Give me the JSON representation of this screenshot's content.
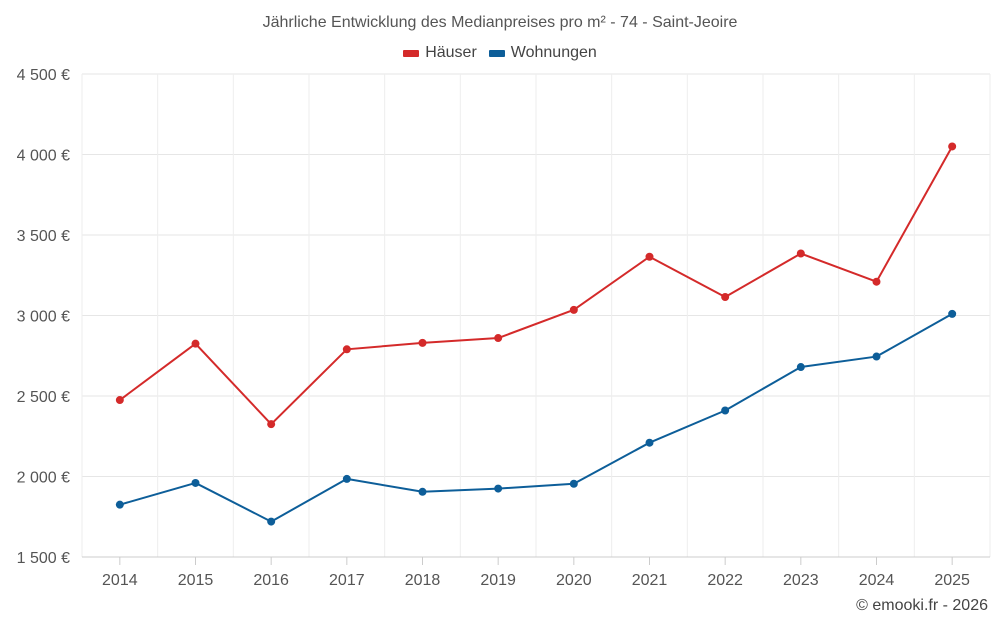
{
  "chart_data": {
    "type": "line",
    "title": "Jährliche Entwicklung des Medianpreises pro m² - 74 - Saint-Jeoire",
    "categories": [
      "2014",
      "2015",
      "2016",
      "2017",
      "2018",
      "2019",
      "2020",
      "2021",
      "2022",
      "2023",
      "2024",
      "2025"
    ],
    "ylim": [
      1500,
      4500
    ],
    "yticks": [
      1500,
      2000,
      2500,
      3000,
      3500,
      4000,
      4500
    ],
    "ytick_labels": [
      "1 500 €",
      "2 000 €",
      "2 500 €",
      "3 000 €",
      "3 500 €",
      "4 000 €",
      "4 500 €"
    ],
    "grid": true,
    "legend_position": "top-center",
    "series": [
      {
        "name": "Häuser",
        "color": "#d42a2a",
        "values": [
          2475,
          2825,
          2325,
          2790,
          2830,
          2860,
          3035,
          3365,
          3115,
          3385,
          3210,
          4050
        ]
      },
      {
        "name": "Wohnungen",
        "color": "#0d5e99",
        "values": [
          1825,
          1960,
          1720,
          1985,
          1905,
          1925,
          1955,
          2210,
          2410,
          2680,
          2745,
          3010
        ]
      }
    ]
  },
  "credit": "© emooki.fr - 2026"
}
